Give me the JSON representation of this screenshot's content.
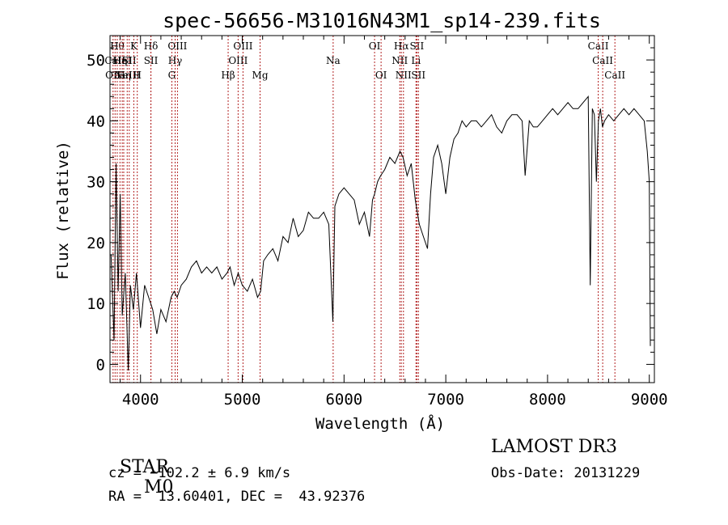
{
  "chart_data": {
    "type": "line",
    "title": "spec-56656-M31016N43M1_sp14-239.fits",
    "xlabel": "Wavelength (Å)",
    "ylabel": "Flux (relative)",
    "xlim": [
      3700,
      9050
    ],
    "ylim": [
      -3,
      54
    ],
    "xticks": [
      4000,
      5000,
      6000,
      7000,
      8000,
      9000
    ],
    "yticks": [
      0,
      10,
      20,
      30,
      40,
      50
    ],
    "series": [
      {
        "name": "flux",
        "x": [
          3710,
          3740,
          3760,
          3780,
          3800,
          3820,
          3850,
          3880,
          3900,
          3930,
          3960,
          4000,
          4040,
          4080,
          4120,
          4160,
          4200,
          4250,
          4300,
          4330,
          4360,
          4400,
          4450,
          4500,
          4550,
          4600,
          4650,
          4700,
          4750,
          4800,
          4850,
          4880,
          4920,
          4960,
          5000,
          5050,
          5100,
          5150,
          5180,
          5210,
          5250,
          5300,
          5350,
          5400,
          5450,
          5500,
          5550,
          5600,
          5650,
          5700,
          5750,
          5800,
          5850,
          5890,
          5910,
          5950,
          6000,
          6050,
          6100,
          6150,
          6200,
          6250,
          6280,
          6300,
          6330,
          6360,
          6400,
          6450,
          6500,
          6550,
          6580,
          6620,
          6660,
          6700,
          6740,
          6780,
          6820,
          6850,
          6880,
          6920,
          6960,
          7000,
          7040,
          7080,
          7120,
          7160,
          7200,
          7250,
          7300,
          7350,
          7400,
          7450,
          7500,
          7550,
          7600,
          7650,
          7700,
          7750,
          7780,
          7820,
          7860,
          7900,
          7950,
          8000,
          8050,
          8100,
          8150,
          8200,
          8250,
          8300,
          8350,
          8400,
          8420,
          8440,
          8460,
          8480,
          8500,
          8520,
          8540,
          8560,
          8600,
          8650,
          8700,
          8750,
          8800,
          8850,
          8900,
          8950,
          8980,
          9000,
          9010
        ],
        "values": [
          18,
          4,
          33,
          12,
          28,
          8,
          15,
          -1,
          13,
          9,
          15,
          6,
          13,
          11,
          9,
          5,
          9,
          7,
          11,
          12,
          11,
          13,
          14,
          16,
          17,
          15,
          16,
          15,
          16,
          14,
          15,
          16,
          13,
          15,
          13,
          12,
          14,
          11,
          12,
          17,
          18,
          19,
          17,
          21,
          20,
          24,
          21,
          22,
          25,
          24,
          24,
          25,
          23,
          7,
          26,
          28,
          29,
          28,
          27,
          23,
          25,
          21,
          27,
          28,
          30,
          31,
          32,
          34,
          33,
          35,
          34,
          31,
          33,
          27,
          23,
          21,
          19,
          28,
          34,
          36,
          33,
          28,
          34,
          37,
          38,
          40,
          39,
          40,
          40,
          39,
          40,
          41,
          39,
          38,
          40,
          41,
          41,
          40,
          31,
          40,
          39,
          39,
          40,
          41,
          42,
          41,
          42,
          43,
          42,
          42,
          43,
          44,
          13,
          42,
          41,
          30,
          40,
          42,
          39,
          40,
          41,
          40,
          41,
          42,
          41,
          42,
          41,
          40,
          35,
          30,
          3
        ]
      }
    ],
    "line_marks": [
      {
        "x": 3730,
        "row": 2,
        "text": "OII"
      },
      {
        "x": 3750,
        "row": 1,
        "text": "CaII"
      },
      {
        "x": 3771,
        "row": 0,
        "text": "Hθ"
      },
      {
        "x": 3798,
        "row": 1,
        "text": "Hη"
      },
      {
        "x": 3820,
        "row": 1,
        "text": "HeI"
      },
      {
        "x": 3835,
        "row": 2,
        "text": "Hη"
      },
      {
        "x": 3869,
        "row": 2,
        "text": "NeIII"
      },
      {
        "x": 3889,
        "row": 1,
        "text": "SII"
      },
      {
        "x": 3934,
        "row": 0,
        "text": "K"
      },
      {
        "x": 3968,
        "row": 2,
        "text": "H"
      },
      {
        "x": 4102,
        "row": 0,
        "text": "Hδ"
      },
      {
        "x": 4102,
        "row": 1,
        "text": "SII"
      },
      {
        "x": 4308,
        "row": 2,
        "text": "G"
      },
      {
        "x": 4340,
        "row": 1,
        "text": "Hγ"
      },
      {
        "x": 4363,
        "row": 0,
        "text": "OIII"
      },
      {
        "x": 4861,
        "row": 2,
        "text": "Hβ"
      },
      {
        "x": 4959,
        "row": 1,
        "text": "OIII"
      },
      {
        "x": 5007,
        "row": 0,
        "text": "OIII"
      },
      {
        "x": 5175,
        "row": 2,
        "text": "Mg"
      },
      {
        "x": 5893,
        "row": 1,
        "text": "Na"
      },
      {
        "x": 6300,
        "row": 0,
        "text": "OI"
      },
      {
        "x": 6364,
        "row": 2,
        "text": "OI"
      },
      {
        "x": 6548,
        "row": 1,
        "text": "NII"
      },
      {
        "x": 6563,
        "row": 0,
        "text": "Hα"
      },
      {
        "x": 6584,
        "row": 2,
        "text": "NII"
      },
      {
        "x": 6707,
        "row": 1,
        "text": "Li"
      },
      {
        "x": 6716,
        "row": 0,
        "text": "SII"
      },
      {
        "x": 6731,
        "row": 2,
        "text": "SII"
      },
      {
        "x": 8498,
        "row": 0,
        "text": "CaII"
      },
      {
        "x": 8542,
        "row": 1,
        "text": "CaII"
      },
      {
        "x": 8662,
        "row": 2,
        "text": "CaII"
      }
    ]
  },
  "info": {
    "class": "STAR",
    "subclass": "M0",
    "survey": "LAMOST DR3",
    "cz": "cz = −102.2 ± 6.9 km/s",
    "obs_date": "Obs-Date: 20131229",
    "coords": "RA =  13.60401, DEC =  43.92376"
  }
}
